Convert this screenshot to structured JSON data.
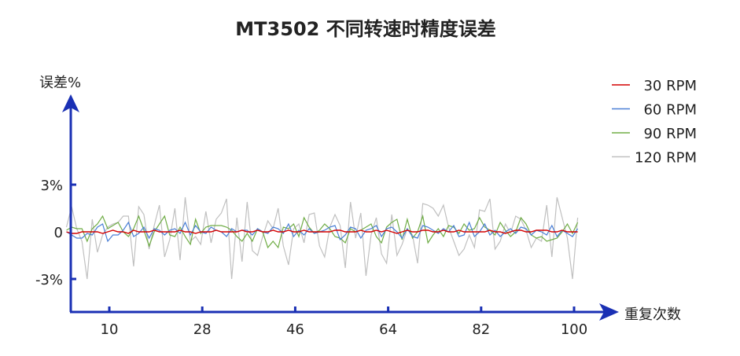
{
  "chart_data": {
    "type": "line",
    "title": "MT3502 不同转速时精度误差",
    "xlabel": "重复次数",
    "ylabel": "误差%",
    "xlim": [
      -0.5,
      104.5
    ],
    "ylim": [
      -5.1,
      8
    ],
    "x_ticks": [
      "10",
      "28",
      "46",
      "64",
      "82",
      "100"
    ],
    "x_tick_values": [
      10,
      28,
      46,
      64,
      82,
      100
    ],
    "y_ticks": [
      "3%",
      "0",
      "-3%"
    ],
    "y_tick_values": [
      3,
      0,
      -3
    ],
    "grid": false,
    "legend_position": "top-right",
    "axis_color": "#1a30b4",
    "x": "1..100",
    "series": [
      {
        "name": "30 RPM",
        "color": "#d40000",
        "values": [
          0.0,
          -0.1,
          -0.1,
          0.0,
          0.0,
          0.0,
          0.0,
          -0.1,
          0.0,
          0.1,
          0.0,
          0.0,
          -0.1,
          0.1,
          0.0,
          0.0,
          0.0,
          0.1,
          0.0,
          0.0,
          0.0,
          0.0,
          0.1,
          0.0,
          0.0,
          -0.1,
          0.0,
          0.0,
          0.0,
          0.1,
          0.0,
          0.0,
          0.0,
          0.0,
          0.1,
          0.0,
          0.0,
          0.1,
          0.0,
          0.0,
          0.1,
          0.0,
          0.0,
          0.1,
          0.0,
          0.0,
          0.1,
          0.0,
          0.0,
          0.0,
          0.0,
          0.0,
          0.1,
          0.1,
          0.0,
          0.0,
          0.0,
          0.1,
          0.0,
          0.0,
          0.1,
          0.0,
          0.1,
          0.0,
          -0.1,
          0.0,
          0.1,
          0.0,
          0.0,
          0.1,
          0.1,
          0.0,
          0.0,
          0.1,
          0.0,
          0.0,
          0.1,
          0.0,
          0.0,
          0.0,
          0.0,
          0.0,
          0.1,
          0.0,
          0.0,
          -0.1,
          0.0,
          0.1,
          0.1,
          0.0,
          0.0,
          0.1,
          0.1,
          0.1,
          0.0,
          0.0,
          0.1,
          0.0,
          0.0,
          0.0
        ]
      },
      {
        "name": "60 RPM",
        "color": "#4a7fd6",
        "values": [
          0.0,
          -0.2,
          -0.4,
          -0.4,
          -0.1,
          -0.2,
          0.3,
          0.5,
          -0.6,
          -0.2,
          -0.2,
          0.1,
          0.6,
          -0.3,
          -0.1,
          0.3,
          -0.4,
          0.2,
          0.1,
          -0.2,
          0.1,
          0.2,
          -0.1,
          0.6,
          -0.2,
          0.4,
          0.0,
          -0.1,
          0.3,
          0.1,
          0.0,
          -0.3,
          0.2,
          0.0,
          0.1,
          0.1,
          -0.2,
          0.2,
          0.0,
          -0.1,
          0.3,
          0.2,
          -0.1,
          0.5,
          -0.3,
          0.1,
          -0.2,
          0.2,
          -0.1,
          0.0,
          0.1,
          0.3,
          0.4,
          -0.5,
          -0.2,
          0.3,
          0.2,
          -0.4,
          0.1,
          0.2,
          0.4,
          -0.3,
          0.2,
          0.3,
          0.0,
          -0.4,
          0.2,
          -0.3,
          -0.4,
          0.4,
          0.3,
          0.1,
          -0.1,
          0.2,
          0.0,
          0.4,
          -0.3,
          -0.2,
          0.6,
          -0.3,
          0.0,
          0.5,
          -0.2,
          0.1,
          -0.3,
          0.0,
          0.2,
          -0.1,
          0.3,
          0.2,
          -0.2,
          0.1,
          0.0,
          -0.2,
          0.4,
          -0.3,
          0.1,
          -0.1,
          -0.3,
          0.2
        ]
      },
      {
        "name": "90 RPM",
        "color": "#70ad47",
        "values": [
          0.1,
          0.3,
          0.2,
          0.2,
          -0.6,
          0.2,
          0.5,
          1.0,
          0.2,
          0.4,
          0.6,
          0.0,
          -0.3,
          0.2,
          1.0,
          0.1,
          -0.9,
          0.0,
          0.5,
          1.0,
          -0.2,
          -0.3,
          0.3,
          -0.3,
          -0.8,
          0.8,
          -0.1,
          0.3,
          0.4,
          0.4,
          0.4,
          0.3,
          0.1,
          -0.3,
          -0.6,
          -0.1,
          -0.6,
          0.2,
          0.0,
          -1.0,
          -0.6,
          -1.0,
          0.3,
          0.2,
          0.5,
          -0.3,
          0.9,
          0.3,
          -0.1,
          0.1,
          0.5,
          0.2,
          -0.3,
          -0.4,
          -0.7,
          0.2,
          0.0,
          0.1,
          0.3,
          0.5,
          -0.3,
          -0.7,
          0.3,
          0.6,
          0.8,
          -0.5,
          0.8,
          -0.4,
          0.0,
          1.0,
          -0.7,
          -0.2,
          0.2,
          -0.3,
          0.4,
          0.3,
          -0.1,
          0.5,
          0.1,
          0.2,
          0.9,
          0.3,
          0.1,
          -0.2,
          0.6,
          0.1,
          -0.3,
          0.0,
          0.9,
          0.5,
          -0.2,
          -0.4,
          -0.3,
          -0.6,
          -0.5,
          -0.4,
          0.0,
          0.5,
          -0.1,
          0.6
        ]
      },
      {
        "name": "120 RPM",
        "color": "#c0c0c0",
        "values": [
          0.3,
          1.6,
          0.2,
          -0.6,
          -3.0,
          0.8,
          -1.3,
          -0.2,
          0.3,
          0.5,
          0.6,
          1.0,
          1.0,
          -2.2,
          1.6,
          1.1,
          -1.1,
          0.4,
          1.7,
          -1.6,
          -0.5,
          1.5,
          -1.8,
          2.2,
          -0.6,
          -0.3,
          -0.8,
          1.3,
          -0.7,
          0.8,
          1.2,
          2.1,
          -3.0,
          0.9,
          -1.9,
          1.9,
          -1.2,
          -1.5,
          -0.3,
          0.7,
          0.2,
          1.5,
          -0.9,
          -2.1,
          0.2,
          0.5,
          -0.7,
          1.1,
          1.2,
          -0.9,
          -1.6,
          0.3,
          1.1,
          0.4,
          -2.3,
          1.9,
          -0.4,
          1.2,
          -2.8,
          -0.2,
          0.9,
          -1.4,
          -2.0,
          1.1,
          -1.5,
          -0.8,
          0.2,
          -0.2,
          -2.0,
          1.8,
          1.7,
          1.5,
          1.0,
          1.7,
          0.3,
          -0.6,
          -1.5,
          -1.1,
          -0.2,
          -1.0,
          1.4,
          1.3,
          2.1,
          -1.1,
          -0.6,
          0.5,
          -0.1,
          1.0,
          0.8,
          0.1,
          -1.0,
          -0.4,
          -0.6,
          1.7,
          -1.6,
          2.2,
          0.9,
          -0.4,
          -3.0,
          0.9
        ]
      }
    ]
  }
}
